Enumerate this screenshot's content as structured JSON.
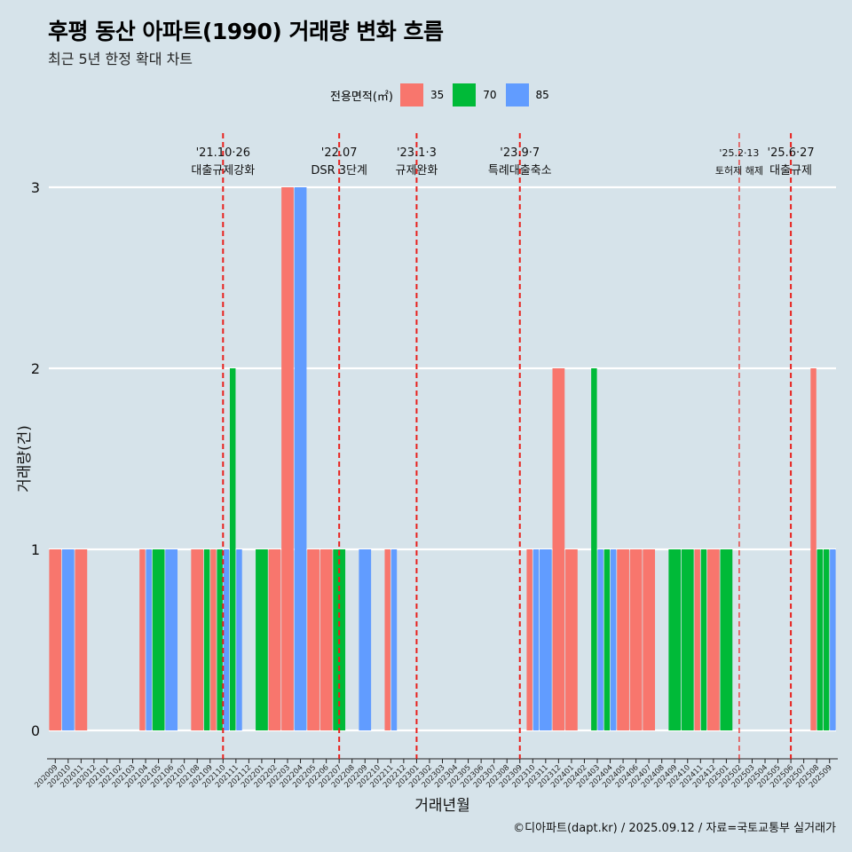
{
  "title": "후평 동산 아파트(1990) 거래량 변화 흐름",
  "subtitle": "최근 5년 한정 확대 차트",
  "legend": {
    "title": "전용면적(㎡)",
    "items": [
      {
        "label": "35",
        "color": "#f8766d"
      },
      {
        "label": "70",
        "color": "#00ba38"
      },
      {
        "label": "85",
        "color": "#619cff"
      }
    ]
  },
  "caption": "©디아파트(dapt.kr) / 2025.09.12 / 자료=국토교통부 실거래가",
  "chart_data": {
    "type": "bar",
    "xlabel": "거래년월",
    "ylabel": "거래량(건)",
    "ylim": [
      0,
      3
    ],
    "yticks": [
      0,
      1,
      2,
      3
    ],
    "grid": true,
    "legend_position": "top",
    "categories": [
      "202009",
      "202010",
      "202011",
      "202012",
      "202101",
      "202102",
      "202103",
      "202104",
      "202105",
      "202106",
      "202107",
      "202108",
      "202109",
      "202110",
      "202111",
      "202112",
      "202201",
      "202202",
      "202203",
      "202204",
      "202205",
      "202206",
      "202207",
      "202208",
      "202209",
      "202210",
      "202211",
      "202212",
      "202301",
      "202302",
      "202303",
      "202304",
      "202305",
      "202306",
      "202307",
      "202308",
      "202309",
      "202310",
      "202311",
      "202312",
      "202401",
      "202402",
      "202403",
      "202404",
      "202405",
      "202406",
      "202407",
      "202408",
      "202409",
      "202410",
      "202411",
      "202412",
      "202501",
      "202502",
      "202503",
      "202504",
      "202505",
      "202506",
      "202507",
      "202508",
      "202509"
    ],
    "bars": [
      {
        "month": "202009",
        "segments": [
          {
            "size": "35",
            "value": 1
          }
        ]
      },
      {
        "month": "202010",
        "segments": [
          {
            "size": "85",
            "value": 1
          }
        ]
      },
      {
        "month": "202011",
        "segments": [
          {
            "size": "35",
            "value": 1
          }
        ]
      },
      {
        "month": "202104",
        "segments": [
          {
            "size": "35",
            "value": 1
          },
          {
            "size": "85",
            "value": 1
          }
        ]
      },
      {
        "month": "202105",
        "segments": [
          {
            "size": "70",
            "value": 1
          }
        ]
      },
      {
        "month": "202106",
        "segments": [
          {
            "size": "85",
            "value": 1
          }
        ]
      },
      {
        "month": "202108",
        "segments": [
          {
            "size": "35",
            "value": 1
          }
        ]
      },
      {
        "month": "202109",
        "segments": [
          {
            "size": "70",
            "value": 1
          },
          {
            "size": "35",
            "value": 1
          }
        ]
      },
      {
        "month": "202110",
        "segments": [
          {
            "size": "70",
            "value": 1
          },
          {
            "size": "85",
            "value": 1
          }
        ]
      },
      {
        "month": "202111",
        "segments": [
          {
            "size": "70",
            "value": 2
          },
          {
            "size": "85",
            "value": 1
          }
        ]
      },
      {
        "month": "202201",
        "segments": [
          {
            "size": "70",
            "value": 1
          }
        ]
      },
      {
        "month": "202202",
        "segments": [
          {
            "size": "35",
            "value": 1
          }
        ]
      },
      {
        "month": "202203",
        "segments": [
          {
            "size": "35",
            "value": 3
          }
        ]
      },
      {
        "month": "202204",
        "segments": [
          {
            "size": "85",
            "value": 3
          }
        ]
      },
      {
        "month": "202205",
        "segments": [
          {
            "size": "35",
            "value": 1
          }
        ]
      },
      {
        "month": "202206",
        "segments": [
          {
            "size": "35",
            "value": 1
          }
        ]
      },
      {
        "month": "202207",
        "segments": [
          {
            "size": "70",
            "value": 1
          }
        ]
      },
      {
        "month": "202209",
        "segments": [
          {
            "size": "85",
            "value": 1
          }
        ]
      },
      {
        "month": "202211",
        "segments": [
          {
            "size": "35",
            "value": 1
          },
          {
            "size": "85",
            "value": 1
          }
        ]
      },
      {
        "month": "202310",
        "segments": [
          {
            "size": "35",
            "value": 1
          },
          {
            "size": "85",
            "value": 1
          }
        ]
      },
      {
        "month": "202311",
        "segments": [
          {
            "size": "85",
            "value": 1
          }
        ]
      },
      {
        "month": "202312",
        "segments": [
          {
            "size": "35",
            "value": 2
          }
        ]
      },
      {
        "month": "202401",
        "segments": [
          {
            "size": "35",
            "value": 1
          }
        ]
      },
      {
        "month": "202403",
        "segments": [
          {
            "size": "70",
            "value": 2
          },
          {
            "size": "85",
            "value": 1
          }
        ]
      },
      {
        "month": "202404",
        "segments": [
          {
            "size": "70",
            "value": 1
          },
          {
            "size": "85",
            "value": 1
          }
        ]
      },
      {
        "month": "202405",
        "segments": [
          {
            "size": "35",
            "value": 1
          }
        ]
      },
      {
        "month": "202406",
        "segments": [
          {
            "size": "35",
            "value": 1
          }
        ]
      },
      {
        "month": "202407",
        "segments": [
          {
            "size": "35",
            "value": 1
          }
        ]
      },
      {
        "month": "202409",
        "segments": [
          {
            "size": "70",
            "value": 1
          }
        ]
      },
      {
        "month": "202410",
        "segments": [
          {
            "size": "70",
            "value": 1
          }
        ]
      },
      {
        "month": "202411",
        "segments": [
          {
            "size": "35",
            "value": 1
          },
          {
            "size": "70",
            "value": 1
          }
        ]
      },
      {
        "month": "202412",
        "segments": [
          {
            "size": "35",
            "value": 1
          }
        ]
      },
      {
        "month": "202501",
        "segments": [
          {
            "size": "70",
            "value": 1
          }
        ]
      },
      {
        "month": "202508",
        "segments": [
          {
            "size": "35",
            "value": 2
          },
          {
            "size": "70",
            "value": 1
          }
        ]
      },
      {
        "month": "202509",
        "segments": [
          {
            "size": "70",
            "value": 1
          },
          {
            "size": "85",
            "value": 1
          }
        ]
      }
    ],
    "annotations": [
      {
        "month": "202110",
        "date": "'21.10·26",
        "label": "대출규제강화"
      },
      {
        "month": "202207",
        "date": "'22.07",
        "label": "DSR 3단계"
      },
      {
        "month": "202301",
        "date": "'23.1·3",
        "label": "규제완화"
      },
      {
        "month": "202309",
        "date": "'23.9·7",
        "label": "특례대출축소"
      },
      {
        "month": "202502",
        "date": "'25.2·13",
        "label": "토허제 해제"
      },
      {
        "month": "202506",
        "date": "'25.6·27",
        "label": "대출규제"
      }
    ]
  }
}
